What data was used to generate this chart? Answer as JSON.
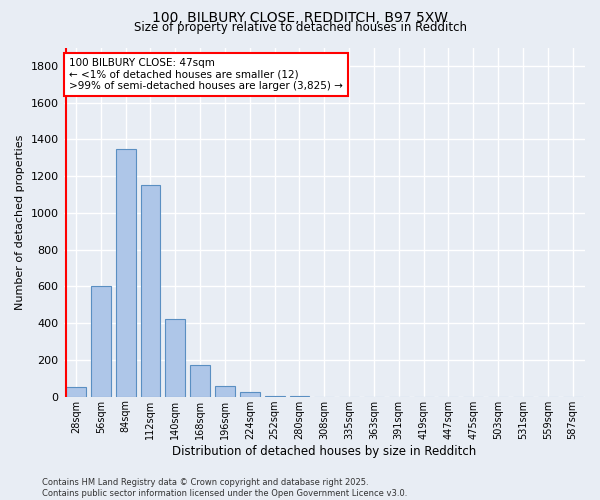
{
  "title1": "100, BILBURY CLOSE, REDDITCH, B97 5XW",
  "title2": "Size of property relative to detached houses in Redditch",
  "xlabel": "Distribution of detached houses by size in Redditch",
  "ylabel": "Number of detached properties",
  "categories": [
    "28sqm",
    "56sqm",
    "84sqm",
    "112sqm",
    "140sqm",
    "168sqm",
    "196sqm",
    "224sqm",
    "252sqm",
    "280sqm",
    "308sqm",
    "335sqm",
    "363sqm",
    "391sqm",
    "419sqm",
    "447sqm",
    "475sqm",
    "503sqm",
    "531sqm",
    "559sqm",
    "587sqm"
  ],
  "values": [
    50,
    600,
    1350,
    1150,
    420,
    175,
    60,
    25,
    5,
    1,
    0,
    0,
    0,
    0,
    0,
    0,
    0,
    0,
    0,
    0,
    0
  ],
  "bar_color": "#aec6e8",
  "bar_edge_color": "#5a8fc2",
  "background_color": "#e8edf4",
  "grid_color": "#ffffff",
  "annotation_text": "100 BILBURY CLOSE: 47sqm\n← <1% of detached houses are smaller (12)\n>99% of semi-detached houses are larger (3,825) →",
  "vline_x_index": 0,
  "ylim": [
    0,
    1900
  ],
  "yticks": [
    0,
    200,
    400,
    600,
    800,
    1000,
    1200,
    1400,
    1600,
    1800
  ],
  "footer": "Contains HM Land Registry data © Crown copyright and database right 2025.\nContains public sector information licensed under the Open Government Licence v3.0."
}
